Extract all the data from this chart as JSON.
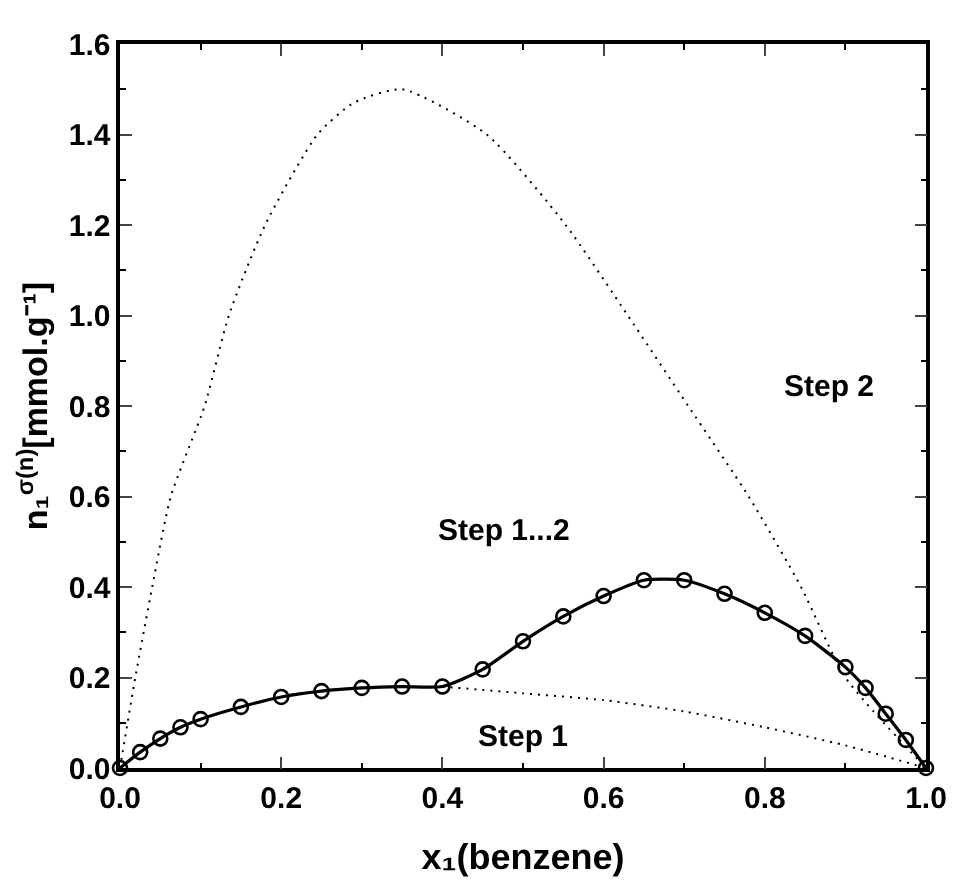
{
  "chart_data": {
    "type": "line",
    "xlabel": "x₁(benzene)",
    "ylabel": "n₁$^{σ(n)}$[mmol.g⁻¹]",
    "xlim": [
      0.0,
      1.0
    ],
    "xticks": [
      {
        "value": 0,
        "label": "0.0"
      },
      0.2,
      0.4,
      0.6,
      0.8,
      {
        "value": 1,
        "label": "1.0"
      }
    ],
    "ylim": [
      0.0,
      1.6
    ],
    "yticks": [
      {
        "value": 0,
        "label": "0.0"
      },
      0.2,
      0.4,
      0.6,
      0.8,
      {
        "value": 1,
        "label": "1.0"
      },
      1.2,
      1.4,
      1.6
    ],
    "legend": false,
    "series": [
      {
        "name": "Step 1...2",
        "color": "#000000",
        "line_style": "solid",
        "marker": "circle",
        "x": [
          0,
          0.025,
          0.05,
          0.075,
          0.1,
          0.15,
          0.2,
          0.25,
          0.3,
          0.35,
          0.4,
          0.45,
          0.5,
          0.55,
          0.6,
          0.65,
          0.7,
          0.75,
          0.8,
          0.85,
          0.9,
          0.925,
          0.95,
          0.975,
          1.0
        ],
        "values": [
          0,
          0.035,
          0.065,
          0.09,
          0.108,
          0.135,
          0.157,
          0.17,
          0.177,
          0.18,
          0.18,
          0.218,
          0.28,
          0.335,
          0.38,
          0.415,
          0.415,
          0.385,
          0.343,
          0.292,
          0.223,
          0.177,
          0.12,
          0.062,
          0
        ]
      },
      {
        "name": "Step 2",
        "color": "#000000",
        "line_style": "dotted",
        "marker": "none",
        "x": [
          0,
          0.019,
          0.04,
          0.063,
          0.105,
          0.135,
          0.18,
          0.245,
          0.29,
          0.35,
          0.455,
          0.553,
          0.63,
          0.705,
          0.78,
          0.845,
          0.9,
          1.0
        ],
        "values": [
          0,
          0.2,
          0.4,
          0.6,
          0.8,
          1.0,
          1.2,
          1.4,
          1.47,
          1.5,
          1.4,
          1.2,
          1.0,
          0.8,
          0.6,
          0.4,
          0.2,
          0
        ]
      },
      {
        "name": "Step 1",
        "color": "#000000",
        "line_style": "dotted",
        "marker": "none",
        "x": [
          0.4,
          0.5,
          0.6,
          0.7,
          0.8,
          0.9,
          1.0
        ],
        "values": [
          0.18,
          0.165,
          0.15,
          0.125,
          0.09,
          0.05,
          0
        ]
      }
    ]
  }
}
